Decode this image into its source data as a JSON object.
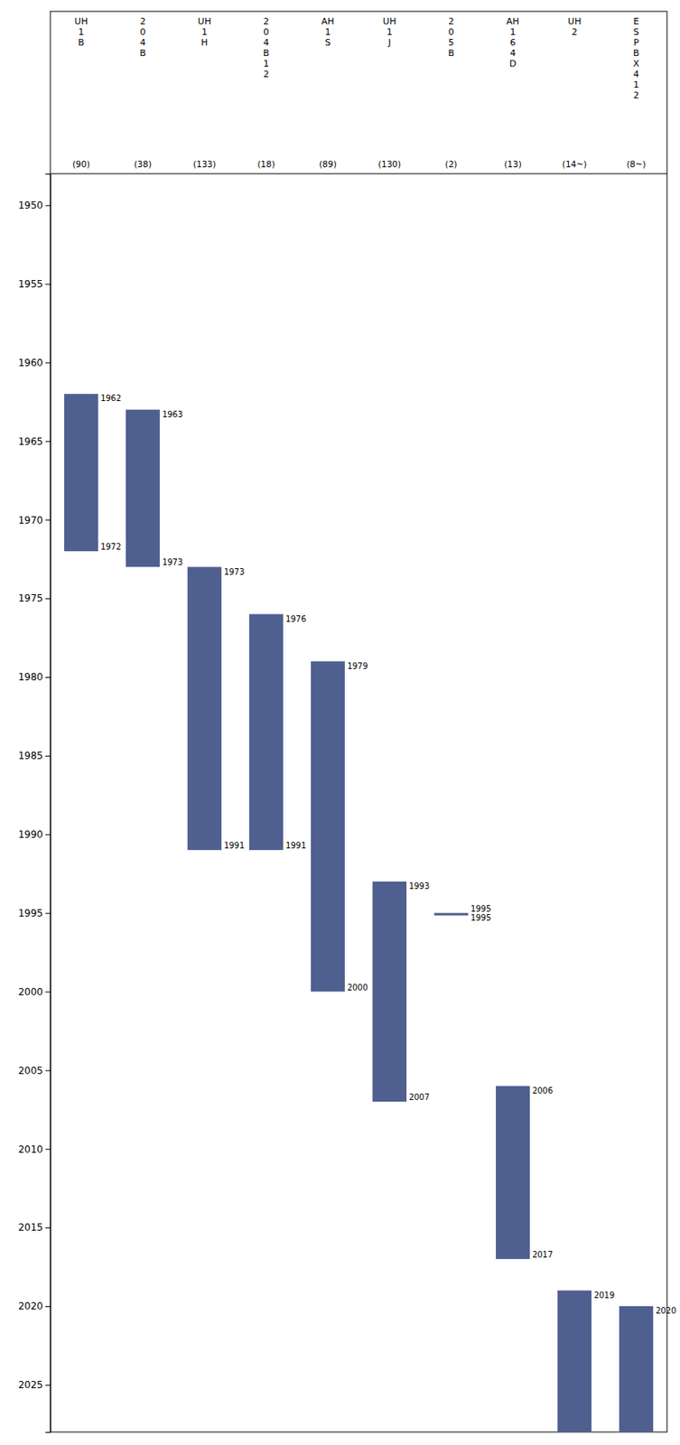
{
  "chart_data": {
    "type": "bar",
    "categories": [
      "UH\n1\nB",
      "2\n0\n4\nB",
      "UH\n1\nH",
      "2\n0\n4\nB\n1\n2",
      "AH\n1\nS",
      "UH\n1\nJ",
      "2\n0\n5\nB",
      "AH\n1\n6\n4\nD",
      "UH\n2",
      "E\nS\nP\nB\nX\n4\n1\n2"
    ],
    "count_labels": [
      "(90)",
      "(38)",
      "(133)",
      "(18)",
      "(89)",
      "(130)",
      "(2)",
      "(13)",
      "(14~)",
      "(8~)"
    ],
    "start": [
      1962,
      1963,
      1973,
      1976,
      1979,
      1993,
      1995,
      2006,
      2019,
      2020
    ],
    "end": [
      1972,
      1973,
      1991,
      1991,
      2000,
      2007,
      1995,
      2017,
      2028,
      2028
    ],
    "color": "#4f5f8f",
    "ylim": [
      2028,
      1948
    ],
    "yticks": [
      1950,
      1955,
      1960,
      1965,
      1970,
      1975,
      1980,
      1985,
      1990,
      1995,
      2000,
      2005,
      2010,
      2015,
      2020,
      2025
    ],
    "data_labels": true
  }
}
